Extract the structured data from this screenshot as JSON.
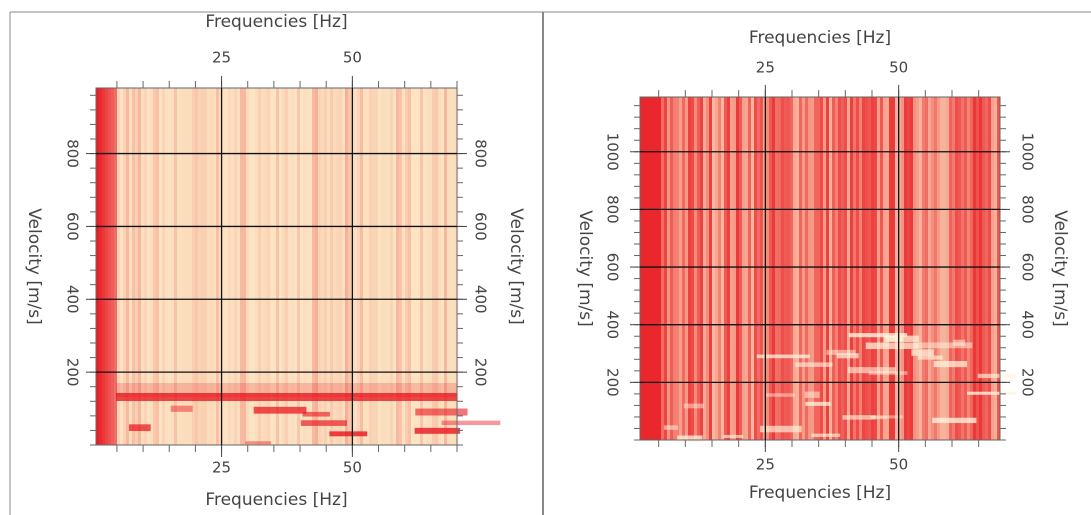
{
  "chart_data": [
    {
      "type": "heatmap",
      "xlabel": "Frequencies [Hz]",
      "ylabel": "Velocity [m/s]",
      "xlim": [
        1,
        70
      ],
      "xticks": [
        25,
        50
      ],
      "ylim": [
        0,
        980
      ],
      "yticks": [
        200,
        400,
        600,
        800
      ],
      "grid": true,
      "colormap": [
        "#fdf0cc",
        "#e8111b"
      ]
    },
    {
      "type": "heatmap",
      "xlabel": "Frequencies [Hz]",
      "ylabel": "Velocity [m/s]",
      "xlim": [
        1.5,
        69
      ],
      "xticks": [
        25,
        50
      ],
      "ylim": [
        0,
        1190
      ],
      "yticks": [
        200,
        400,
        600,
        800,
        1000
      ],
      "grid": true,
      "colormap": [
        "#fdf0cc",
        "#e8111b"
      ]
    }
  ]
}
